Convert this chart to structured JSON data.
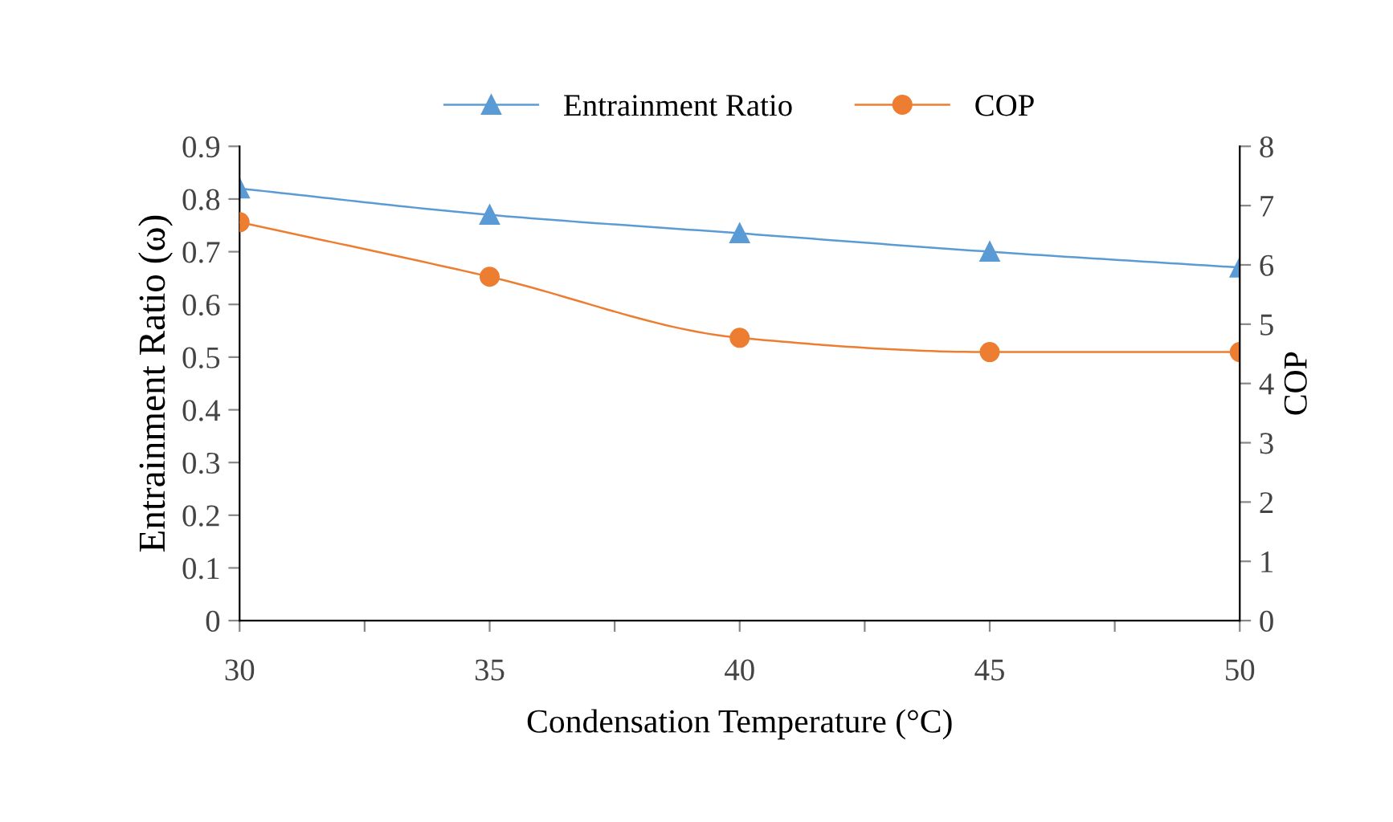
{
  "chart_data": {
    "type": "line",
    "xlabel": "Condensation Temperature (°C)",
    "ylabel": "Entrainment Ratio (ω)",
    "y2label": "COP",
    "x": [
      30,
      35,
      40,
      45,
      50
    ],
    "series": [
      {
        "name": "Entrainment Ratio",
        "color": "#5b9bd5",
        "marker": "triangle",
        "values": [
          0.82,
          0.77,
          0.735,
          0.7,
          0.67
        ]
      },
      {
        "name": "COP",
        "color": "#ed7d31",
        "marker": "circle",
        "axis": "y2",
        "values": [
          6.72,
          5.8,
          4.77,
          4.53,
          4.53
        ]
      }
    ],
    "xlim": [
      30,
      50
    ],
    "xticks": [
      30,
      {
        "value": 32.5,
        "label": null
      },
      35,
      {
        "value": 37.5,
        "label": null
      },
      40,
      {
        "value": 42.5,
        "label": null
      },
      45,
      {
        "value": 47.5,
        "label": null
      },
      50
    ],
    "ylim": [
      0,
      0.9
    ],
    "yticks": [
      0,
      0.1,
      0.2,
      0.3,
      0.4,
      0.5,
      0.6,
      0.7,
      0.8,
      0.9
    ],
    "y2lim": [
      0,
      8
    ],
    "y2ticks": [
      0,
      1,
      2,
      3,
      4,
      5,
      6,
      7,
      8
    ],
    "grid": false,
    "legend": "top",
    "line_style": "solid"
  }
}
